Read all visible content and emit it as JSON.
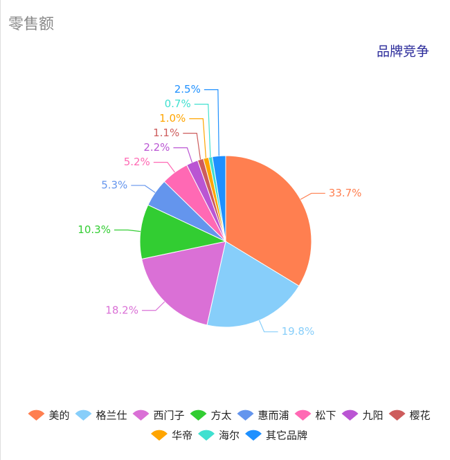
{
  "chart_data": {
    "type": "pie",
    "title": "零售额",
    "subtitle": "品牌竞争",
    "categories": [
      "美的",
      "格兰仕",
      "西门子",
      "方太",
      "惠而浦",
      "松下",
      "九阳",
      "樱花",
      "华帝",
      "海尔",
      "其它品牌"
    ],
    "values": [
      33.7,
      19.8,
      18.2,
      10.3,
      5.3,
      5.2,
      2.2,
      1.1,
      1.0,
      0.7,
      2.5
    ],
    "value_labels": [
      "33.7%",
      "19.8%",
      "18.2%",
      "10.3%",
      "5.3%",
      "5.2%",
      "2.2%",
      "1.1%",
      "1.0%",
      "0.7%",
      "2.5%"
    ],
    "colors": [
      "#ff7f50",
      "#87cefa",
      "#da70d6",
      "#32cd32",
      "#6495ed",
      "#ff69b4",
      "#ba55d3",
      "#cd5c5c",
      "#ffa500",
      "#40e0d0",
      "#1e90ff"
    ]
  }
}
